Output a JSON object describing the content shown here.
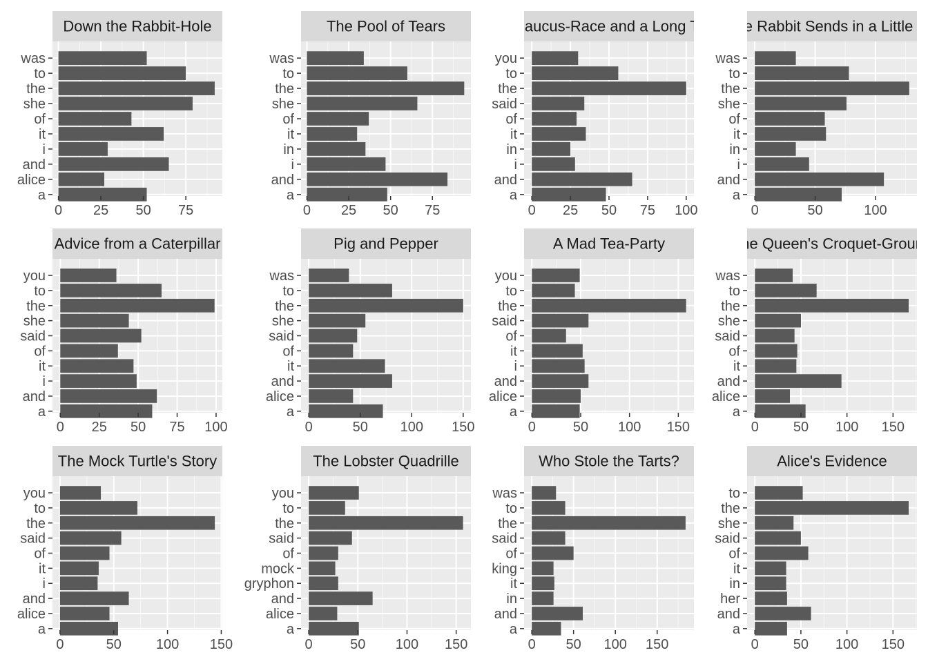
{
  "chart_data": {
    "type": "bar",
    "orientation": "horizontal",
    "layout": "facet-grid 3x4, free scales",
    "colors": {
      "bar": "#595959",
      "panel": "#ebebeb",
      "grid": "#ffffff",
      "strip": "#d9d9d9",
      "axis_text": "#4d4d4d",
      "strip_text": "#1a1a1a"
    },
    "grid": true,
    "legend": "none",
    "panels": [
      {
        "title": "Down the Rabbit-Hole",
        "categories": [
          "was",
          "to",
          "the",
          "she",
          "of",
          "it",
          "i",
          "and",
          "alice",
          "a"
        ],
        "values": [
          52,
          75,
          92,
          79,
          43,
          62,
          29,
          65,
          27,
          52
        ],
        "xlim": [
          -3.5,
          96.5
        ],
        "xticks": [
          0,
          25,
          50,
          75
        ],
        "xtick_labels": [
          "0",
          "25",
          "50",
          "75"
        ]
      },
      {
        "title": "The Pool of Tears",
        "categories": [
          "was",
          "to",
          "the",
          "she",
          "of",
          "it",
          "in",
          "i",
          "and",
          "a"
        ],
        "values": [
          34,
          60,
          94,
          66,
          37,
          30,
          35,
          47,
          84,
          48
        ],
        "xlim": [
          -3.5,
          98
        ],
        "xticks": [
          0,
          25,
          50,
          75
        ],
        "xtick_labels": [
          "0",
          "25",
          "50",
          "75"
        ]
      },
      {
        "title": "A Caucus-Race and a Long Tale",
        "categories": [
          "you",
          "to",
          "the",
          "said",
          "of",
          "it",
          "in",
          "i",
          "and",
          "a"
        ],
        "values": [
          30,
          56,
          100,
          34,
          29,
          35,
          25,
          28,
          65,
          48
        ],
        "xlim": [
          -5,
          105
        ],
        "xticks": [
          0,
          25,
          50,
          75,
          100
        ],
        "xtick_labels": [
          "0",
          "25",
          "50",
          "75",
          "100"
        ]
      },
      {
        "title": "The Rabbit Sends in a Little Bill",
        "categories": [
          "was",
          "to",
          "the",
          "she",
          "of",
          "it",
          "in",
          "i",
          "and",
          "a"
        ],
        "values": [
          34,
          78,
          128,
          76,
          58,
          59,
          34,
          45,
          107,
          72
        ],
        "xlim": [
          -6.4,
          134.4
        ],
        "xticks": [
          0,
          50,
          100
        ],
        "xtick_labels": [
          "0",
          "50",
          "100"
        ]
      },
      {
        "title": "Advice from a Caterpillar",
        "categories": [
          "you",
          "to",
          "the",
          "she",
          "said",
          "of",
          "it",
          "i",
          "and",
          "a"
        ],
        "values": [
          36,
          65,
          99,
          44,
          52,
          37,
          47,
          49,
          62,
          59
        ],
        "xlim": [
          -5,
          104
        ],
        "xticks": [
          0,
          25,
          50,
          75,
          100
        ],
        "xtick_labels": [
          "0",
          "25",
          "50",
          "75",
          "100"
        ]
      },
      {
        "title": "Pig and Pepper",
        "categories": [
          "was",
          "to",
          "the",
          "she",
          "said",
          "of",
          "it",
          "and",
          "alice",
          "a"
        ],
        "values": [
          39,
          81,
          150,
          55,
          47,
          43,
          74,
          81,
          43,
          72
        ],
        "xlim": [
          -7.5,
          157.5
        ],
        "xticks": [
          0,
          50,
          100,
          150
        ],
        "xtick_labels": [
          "0",
          "50",
          "100",
          "150"
        ]
      },
      {
        "title": "A Mad Tea-Party",
        "categories": [
          "you",
          "to",
          "the",
          "said",
          "of",
          "it",
          "i",
          "and",
          "alice",
          "a"
        ],
        "values": [
          49,
          44,
          158,
          58,
          35,
          52,
          54,
          58,
          50,
          49
        ],
        "xlim": [
          -8,
          166
        ],
        "xticks": [
          0,
          50,
          100,
          150
        ],
        "xtick_labels": [
          "0",
          "50",
          "100",
          "150"
        ]
      },
      {
        "title": "The Queen's Croquet-Ground",
        "categories": [
          "was",
          "to",
          "the",
          "she",
          "said",
          "of",
          "it",
          "and",
          "alice",
          "a"
        ],
        "values": [
          41,
          67,
          167,
          50,
          43,
          46,
          45,
          94,
          38,
          55
        ],
        "xlim": [
          -8.5,
          176
        ],
        "xticks": [
          0,
          50,
          100,
          150
        ],
        "xtick_labels": [
          "0",
          "50",
          "100",
          "150"
        ]
      },
      {
        "title": "The Mock Turtle's Story",
        "categories": [
          "you",
          "to",
          "the",
          "said",
          "of",
          "it",
          "i",
          "and",
          "alice",
          "a"
        ],
        "values": [
          38,
          72,
          144,
          57,
          46,
          36,
          35,
          64,
          46,
          54
        ],
        "xlim": [
          -7,
          151
        ],
        "xticks": [
          0,
          50,
          100,
          150
        ],
        "xtick_labels": [
          "0",
          "50",
          "100",
          "150"
        ]
      },
      {
        "title": "The Lobster Quadrille",
        "categories": [
          "you",
          "to",
          "the",
          "said",
          "of",
          "mock",
          "gryphon",
          "and",
          "alice",
          "a"
        ],
        "values": [
          51,
          37,
          157,
          44,
          30,
          27,
          30,
          65,
          29,
          51
        ],
        "xlim": [
          -7.8,
          165
        ],
        "xticks": [
          0,
          50,
          100,
          150
        ],
        "xtick_labels": [
          "0",
          "50",
          "100",
          "150"
        ]
      },
      {
        "title": "Who Stole the Tarts?",
        "categories": [
          "was",
          "to",
          "the",
          "said",
          "of",
          "king",
          "it",
          "in",
          "and",
          "a"
        ],
        "values": [
          29,
          40,
          184,
          40,
          50,
          26,
          27,
          26,
          61,
          35
        ],
        "xlim": [
          -9.2,
          194
        ],
        "xticks": [
          0,
          50,
          100,
          150
        ],
        "xtick_labels": [
          "0",
          "50",
          "100",
          "150"
        ]
      },
      {
        "title": "Alice's Evidence",
        "categories": [
          "to",
          "the",
          "she",
          "said",
          "of",
          "it",
          "in",
          "her",
          "and",
          "a"
        ],
        "values": [
          52,
          167,
          42,
          50,
          58,
          34,
          34,
          35,
          61,
          35
        ],
        "xlim": [
          -8.4,
          176
        ],
        "xticks": [
          0,
          50,
          100,
          150
        ],
        "xtick_labels": [
          "0",
          "50",
          "100",
          "150"
        ]
      }
    ]
  }
}
